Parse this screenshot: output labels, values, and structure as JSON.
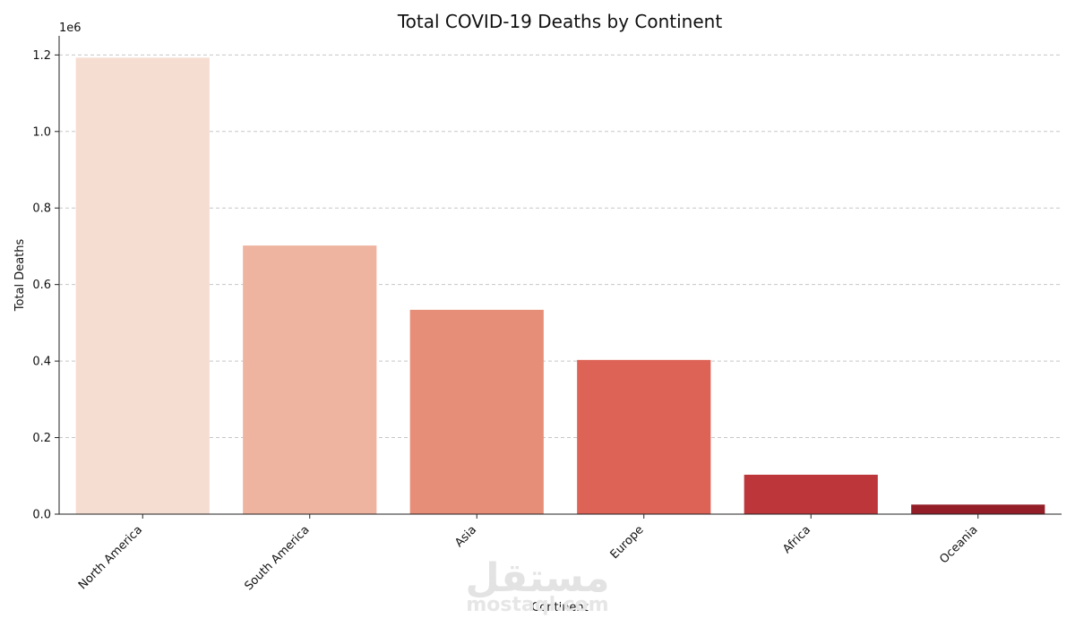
{
  "chart_data": {
    "type": "bar",
    "title": "Total COVID-19 Deaths by Continent",
    "xlabel": "Continent",
    "ylabel": "Total Deaths",
    "y_exponent_label": "1e6",
    "categories": [
      "North America",
      "South America",
      "Asia",
      "Europe",
      "Africa",
      "Oceania"
    ],
    "values": [
      1193000,
      702000,
      534000,
      403000,
      103000,
      25000
    ],
    "colors": [
      "#f6ddd2",
      "#efb4a0",
      "#e68e77",
      "#dc6355",
      "#bc363a",
      "#941e27"
    ],
    "y_ticks": [
      0.0,
      0.2,
      0.4,
      0.6,
      0.8,
      1.0,
      1.2
    ],
    "y_tick_labels": [
      "0.0",
      "0.2",
      "0.4",
      "0.6",
      "0.8",
      "1.0",
      "1.2"
    ],
    "y_tick_scale": 1000000,
    "ylim": [
      0,
      1250000
    ],
    "grid": "y, dashed",
    "legend": "none"
  },
  "watermark": {
    "arabic": "مستقل",
    "latin": "mostaql.com"
  }
}
